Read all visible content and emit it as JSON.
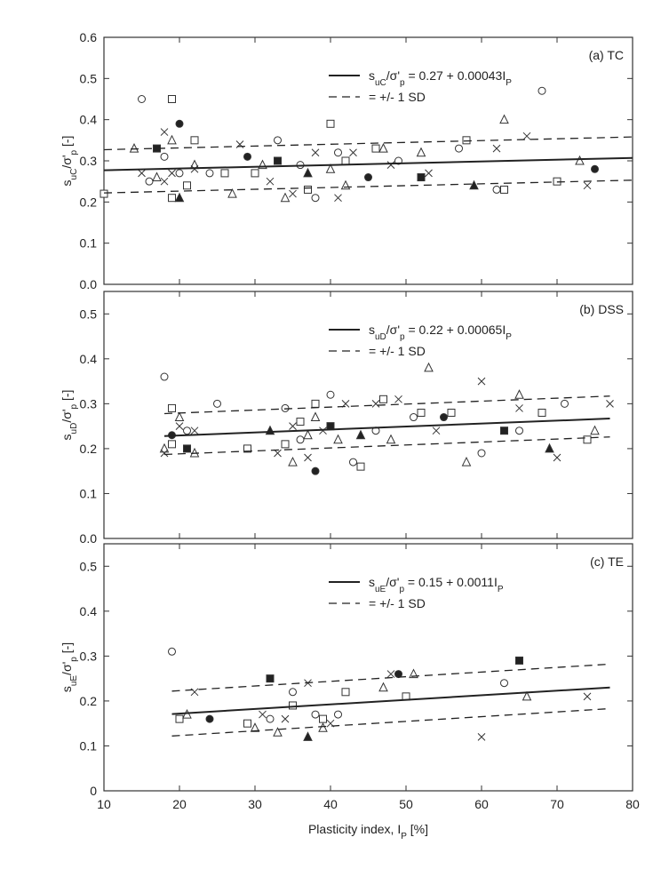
{
  "chart_data": [
    {
      "type": "scatter",
      "annotation": "(a) TC",
      "ylabel": [
        "s",
        "uC",
        "/σ'",
        "p",
        " [-]"
      ],
      "ylim": [
        0,
        0.6
      ],
      "yticks": [
        {
          "value": 0,
          "label": "0.0"
        },
        0.1,
        0.2,
        0.3,
        0.4,
        0.5,
        0.6
      ],
      "x": [
        15,
        19,
        19,
        18,
        20,
        22,
        14,
        15,
        16,
        17,
        17,
        18,
        18,
        19,
        20,
        19,
        20,
        21,
        22,
        22,
        24,
        26,
        27,
        28,
        29,
        30,
        31,
        32,
        33,
        33,
        34,
        35,
        36,
        37,
        37,
        38,
        38,
        40,
        40,
        41,
        41,
        42,
        42,
        43,
        45,
        46,
        47,
        48,
        49,
        52,
        52,
        53,
        57,
        58,
        59,
        62,
        62,
        63,
        63,
        66,
        68,
        70,
        73,
        74,
        75,
        10
      ],
      "values": [
        0.45,
        0.45,
        0.35,
        0.37,
        0.39,
        0.35,
        0.33,
        0.27,
        0.25,
        0.33,
        0.26,
        0.25,
        0.31,
        0.21,
        0.21,
        0.27,
        0.27,
        0.24,
        0.29,
        0.28,
        0.27,
        0.27,
        0.22,
        0.34,
        0.31,
        0.27,
        0.29,
        0.25,
        0.35,
        0.3,
        0.21,
        0.22,
        0.29,
        0.23,
        0.27,
        0.32,
        0.21,
        0.39,
        0.28,
        0.21,
        0.32,
        0.3,
        0.24,
        0.32,
        0.26,
        0.33,
        0.33,
        0.29,
        0.3,
        0.26,
        0.32,
        0.27,
        0.33,
        0.35,
        0.24,
        0.33,
        0.23,
        0.23,
        0.4,
        0.36,
        0.47,
        0.25,
        0.3,
        0.24,
        0.28,
        0.22
      ],
      "lines": [
        {
          "name": [
            "s",
            "uC",
            "/σ'",
            "p",
            " = 0.27 + 0.00043I",
            "P"
          ],
          "x": [
            10,
            80
          ],
          "values": [
            0.277,
            0.307
          ],
          "dashed": false
        },
        {
          "name": [
            "=  +/- 1 SD"
          ],
          "x": [
            10,
            80
          ],
          "values": [
            0.327,
            0.358
          ],
          "dashed": true
        },
        {
          "x": [
            10,
            80
          ],
          "values": [
            0.222,
            0.253
          ],
          "dashed": true
        }
      ]
    },
    {
      "type": "scatter",
      "annotation": "(b) DSS",
      "ylabel": [
        "s",
        "uD",
        "/σ'",
        "p",
        " [-]"
      ],
      "ylim": [
        0,
        0.55
      ],
      "yticks": [
        {
          "value": 0,
          "label": "0.0"
        },
        0.1,
        0.2,
        0.3,
        0.4,
        0.5
      ],
      "x": [
        18,
        19,
        18,
        18,
        19,
        19,
        20,
        20,
        21,
        21,
        22,
        22,
        25,
        29,
        32,
        33,
        34,
        34,
        35,
        35,
        36,
        36,
        37,
        37,
        38,
        38,
        38,
        39,
        40,
        40,
        41,
        42,
        43,
        44,
        44,
        46,
        46,
        47,
        48,
        49,
        51,
        52,
        53,
        54,
        55,
        56,
        58,
        60,
        60,
        63,
        65,
        65,
        65,
        68,
        69,
        70,
        71,
        74,
        75,
        77
      ],
      "values": [
        0.36,
        0.29,
        0.2,
        0.19,
        0.23,
        0.21,
        0.27,
        0.25,
        0.24,
        0.2,
        0.19,
        0.24,
        0.3,
        0.2,
        0.24,
        0.19,
        0.29,
        0.21,
        0.17,
        0.25,
        0.22,
        0.26,
        0.23,
        0.18,
        0.15,
        0.3,
        0.27,
        0.24,
        0.32,
        0.25,
        0.22,
        0.3,
        0.17,
        0.16,
        0.23,
        0.3,
        0.24,
        0.31,
        0.22,
        0.31,
        0.27,
        0.28,
        0.38,
        0.24,
        0.27,
        0.28,
        0.17,
        0.35,
        0.19,
        0.24,
        0.32,
        0.29,
        0.24,
        0.28,
        0.2,
        0.18,
        0.3,
        0.22,
        0.24,
        0.3
      ],
      "lines": [
        {
          "name": [
            "s",
            "uD",
            "/σ'",
            "p",
            " = 0.22 + 0.00065I",
            "P"
          ],
          "x": [
            18,
            77
          ],
          "values": [
            0.228,
            0.267
          ],
          "dashed": false
        },
        {
          "name": [
            "=  +/- 1 SD"
          ],
          "x": [
            18,
            77
          ],
          "values": [
            0.278,
            0.317
          ],
          "dashed": true
        },
        {
          "x": [
            18,
            77
          ],
          "values": [
            0.187,
            0.226
          ],
          "dashed": true
        }
      ]
    },
    {
      "type": "scatter",
      "annotation": "(c) TE",
      "ylabel": [
        "s",
        "uE",
        "/σ'",
        "p",
        " [-]"
      ],
      "xlabel": [
        "Plasticity index, I",
        "P",
        " [%]"
      ],
      "xlim": [
        10,
        80
      ],
      "xticks": [
        10,
        20,
        30,
        40,
        50,
        60,
        70,
        80
      ],
      "ylim": [
        0,
        0.55
      ],
      "yticks": [
        0,
        0.1,
        0.2,
        0.3,
        0.4,
        0.5
      ],
      "x": [
        19,
        20,
        21,
        22,
        24,
        29,
        30,
        31,
        32,
        32,
        33,
        34,
        35,
        35,
        37,
        37,
        38,
        39,
        39,
        40,
        41,
        42,
        47,
        48,
        49,
        50,
        51,
        60,
        63,
        65,
        66,
        74
      ],
      "values": [
        0.31,
        0.16,
        0.17,
        0.22,
        0.16,
        0.15,
        0.14,
        0.17,
        0.16,
        0.25,
        0.13,
        0.16,
        0.22,
        0.19,
        0.12,
        0.24,
        0.17,
        0.16,
        0.14,
        0.15,
        0.17,
        0.22,
        0.23,
        0.26,
        0.26,
        0.21,
        0.26,
        0.12,
        0.24,
        0.29,
        0.21,
        0.21
      ],
      "lines": [
        {
          "name": [
            "s",
            "uE",
            "/σ'",
            "p",
            " = 0.15 + 0.0011I",
            "P"
          ],
          "x": [
            19,
            77
          ],
          "values": [
            0.171,
            0.23
          ],
          "dashed": false
        },
        {
          "name": [
            "=  +/- 1 SD"
          ],
          "x": [
            19,
            77
          ],
          "values": [
            0.222,
            0.282
          ],
          "dashed": true
        },
        {
          "x": [
            19,
            77
          ],
          "values": [
            0.122,
            0.183
          ],
          "dashed": true
        }
      ]
    }
  ]
}
